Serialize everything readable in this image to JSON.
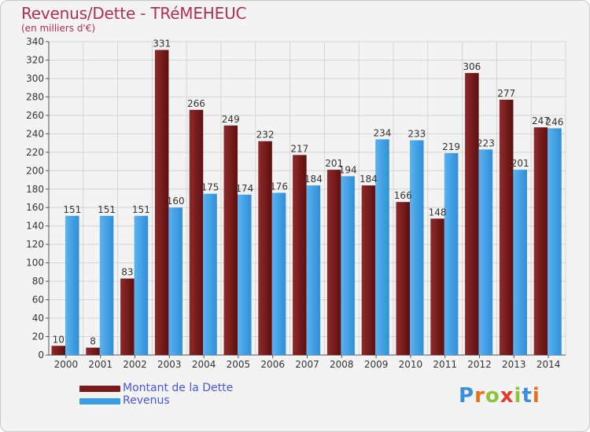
{
  "title": "Revenus/Dette - TRéMEHEUC",
  "subtitle": "(en milliers d'€)",
  "brand": {
    "letters": [
      "P",
      "r",
      "o",
      "x",
      "i",
      "t",
      "i"
    ],
    "colors": [
      "#3a8fd8",
      "#e8701a",
      "#8cc43a",
      "#e83a2a",
      "#8cc43a",
      "#3a8fd8",
      "#e8701a"
    ]
  },
  "legend": [
    {
      "label": "Montant de la Dette",
      "color": "#7b1a1a"
    },
    {
      "label": "Revenus",
      "color": "#3a9ee6"
    }
  ],
  "chart_data": {
    "type": "bar",
    "categories": [
      "2000",
      "2001",
      "2002",
      "2003",
      "2004",
      "2005",
      "2006",
      "2007",
      "2008",
      "2009",
      "2010",
      "2011",
      "2012",
      "2013",
      "2014"
    ],
    "series": [
      {
        "name": "Montant de la Dette",
        "color": "#7b1a1a",
        "values": [
          10,
          8,
          83,
          331,
          266,
          249,
          232,
          217,
          201,
          184,
          166,
          148,
          306,
          277,
          247
        ]
      },
      {
        "name": "Revenus",
        "color": "#3a9ee6",
        "values": [
          151,
          151,
          151,
          160,
          175,
          174,
          176,
          184,
          194,
          234,
          233,
          219,
          223,
          201,
          246
        ]
      }
    ],
    "ylim": [
      0,
      340
    ],
    "yticks": [
      0,
      20,
      40,
      60,
      80,
      100,
      120,
      140,
      160,
      180,
      200,
      220,
      240,
      260,
      280,
      300,
      320,
      340
    ],
    "grid": true,
    "legend_position": "bottom-left"
  }
}
